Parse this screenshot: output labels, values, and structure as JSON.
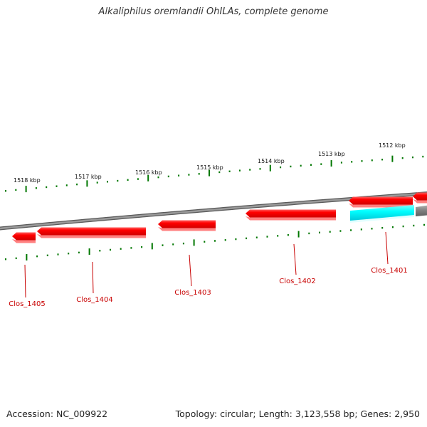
{
  "title": "Alkaliphilus oremlandii OhILAs, complete genome",
  "footer": {
    "accession": "Accession: NC_009922",
    "topology": "Topology: circular; Length: 3,123,558 bp; Genes: 2,950"
  },
  "colors": {
    "gene_fill": "#ff0000",
    "gene_shadow": "#ff8080",
    "highlight_fill": "#00ffff",
    "backbone": "#808080",
    "tick": "#007700",
    "label": "#c80000"
  },
  "scale_labels": [
    "1518 kbp",
    "1517 kbp",
    "1516 kbp",
    "1515 kbp",
    "1514 kbp",
    "1513 kbp",
    "1512 kbp"
  ],
  "gene_labels": [
    "Clos_1405",
    "Clos_1404",
    "Clos_1403",
    "Clos_1402",
    "Clos_1401"
  ]
}
